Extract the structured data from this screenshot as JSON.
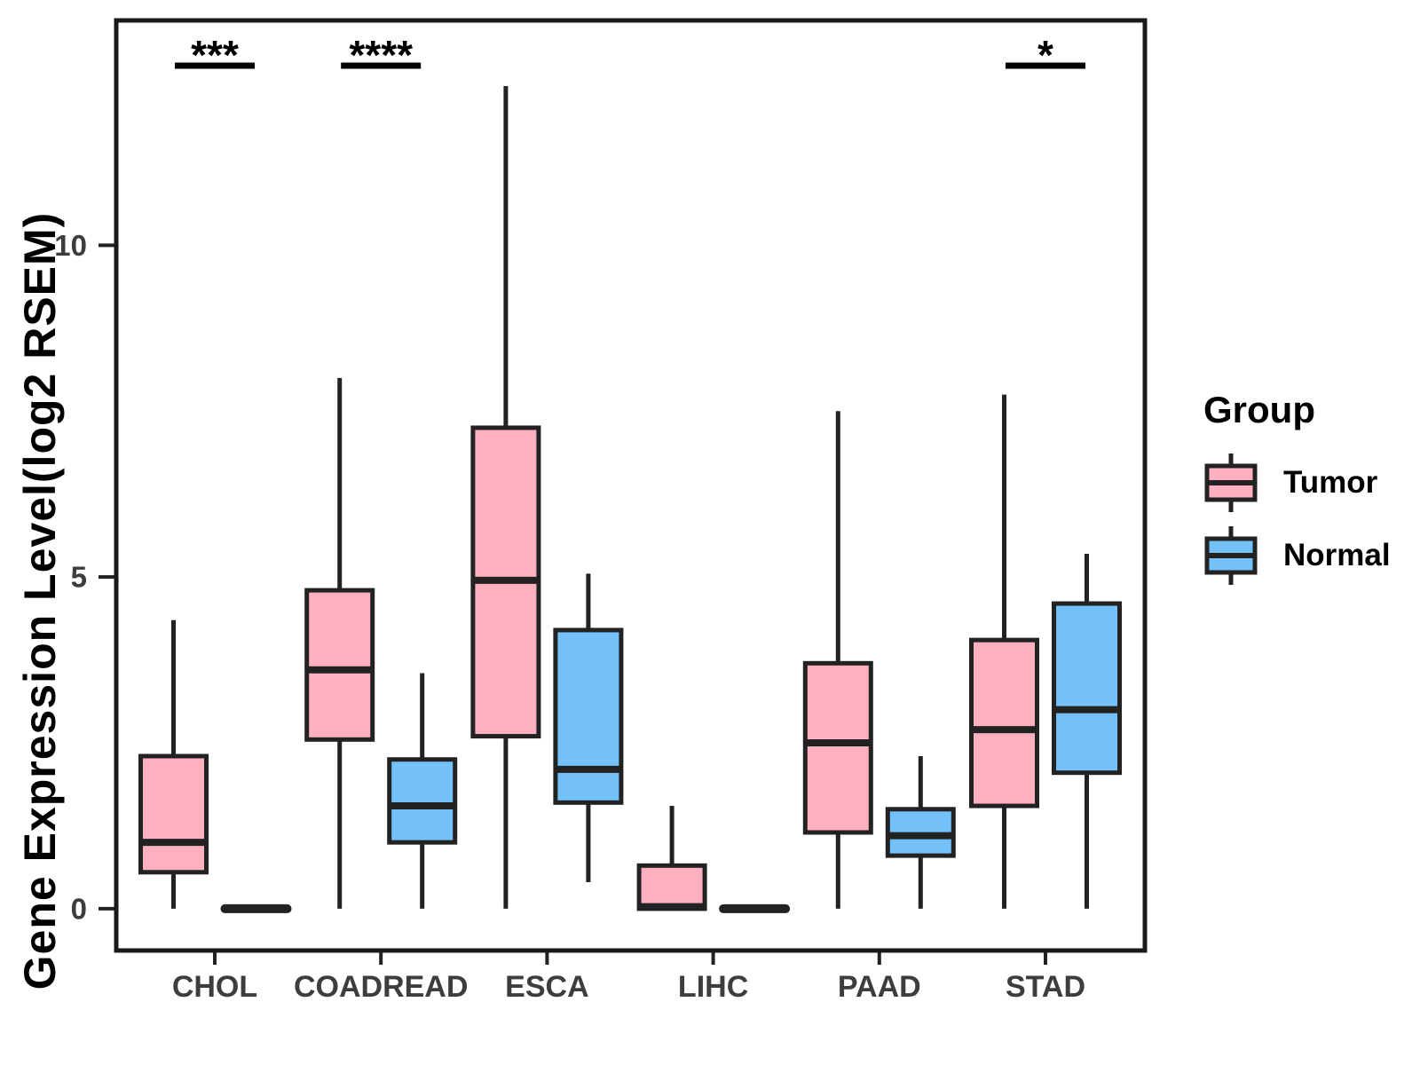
{
  "figure": {
    "y_axis_title": "Gene Expression Level(log2 RSEM)",
    "legend": {
      "title": "Group",
      "entries": [
        {
          "label": "Tumor",
          "color": "#FFB0C0"
        },
        {
          "label": "Normal",
          "color": "#74C1FA"
        }
      ]
    }
  },
  "chart_data": {
    "type": "boxplot",
    "title": "",
    "xlabel": "",
    "ylabel": "Gene Expression Level(log2 RSEM)",
    "categories": [
      "CHOL",
      "COADREAD",
      "ESCA",
      "LIHC",
      "PAAD",
      "STAD"
    ],
    "y_ticks": [
      0,
      5,
      10
    ],
    "ylim": [
      -0.63,
      13.39
    ],
    "grid": false,
    "legend_position": "right",
    "style": {
      "tumor_fill": "#FFB0C0",
      "normal_fill": "#74C1FA",
      "stroke": "#222222",
      "tick_label_color": "#3d3d3d",
      "annotation_color": "#000000"
    },
    "series": [
      {
        "name": "Tumor",
        "color": "#FFB0C0",
        "boxes": [
          {
            "category": "CHOL",
            "min": 0,
            "q1": 0.55,
            "median": 1.0,
            "q3": 2.3,
            "max": 4.35
          },
          {
            "category": "COADREAD",
            "min": 0,
            "q1": 2.55,
            "median": 3.6,
            "q3": 4.8,
            "max": 8.0
          },
          {
            "category": "ESCA",
            "min": 0,
            "q1": 2.6,
            "median": 4.95,
            "q3": 7.25,
            "max": 12.4
          },
          {
            "category": "LIHC",
            "min": 0,
            "q1": 0,
            "median": 0.03,
            "q3": 0.65,
            "max": 1.55
          },
          {
            "category": "PAAD",
            "min": 0,
            "q1": 1.15,
            "median": 2.5,
            "q3": 3.7,
            "max": 7.5
          },
          {
            "category": "STAD",
            "min": 0,
            "q1": 1.55,
            "median": 2.7,
            "q3": 4.05,
            "max": 7.75
          }
        ]
      },
      {
        "name": "Normal",
        "color": "#74C1FA",
        "boxes": [
          {
            "category": "CHOL",
            "min": 0,
            "q1": 0,
            "median": 0,
            "q3": 0,
            "max": 0
          },
          {
            "category": "COADREAD",
            "min": 0,
            "q1": 1.0,
            "median": 1.55,
            "q3": 2.25,
            "max": 3.55
          },
          {
            "category": "ESCA",
            "min": 0.4,
            "q1": 1.6,
            "median": 2.1,
            "q3": 4.2,
            "max": 5.05
          },
          {
            "category": "LIHC",
            "min": 0,
            "q1": 0,
            "median": 0,
            "q3": 0,
            "max": 0
          },
          {
            "category": "PAAD",
            "min": 0,
            "q1": 0.8,
            "median": 1.1,
            "q3": 1.5,
            "max": 2.3
          },
          {
            "category": "STAD",
            "min": 0,
            "q1": 2.05,
            "median": 3.0,
            "q3": 4.6,
            "max": 5.35
          }
        ]
      }
    ],
    "significance": [
      {
        "category": "CHOL",
        "label": "***"
      },
      {
        "category": "COADREAD",
        "label": "****"
      },
      {
        "category": "STAD",
        "label": "*"
      }
    ]
  }
}
